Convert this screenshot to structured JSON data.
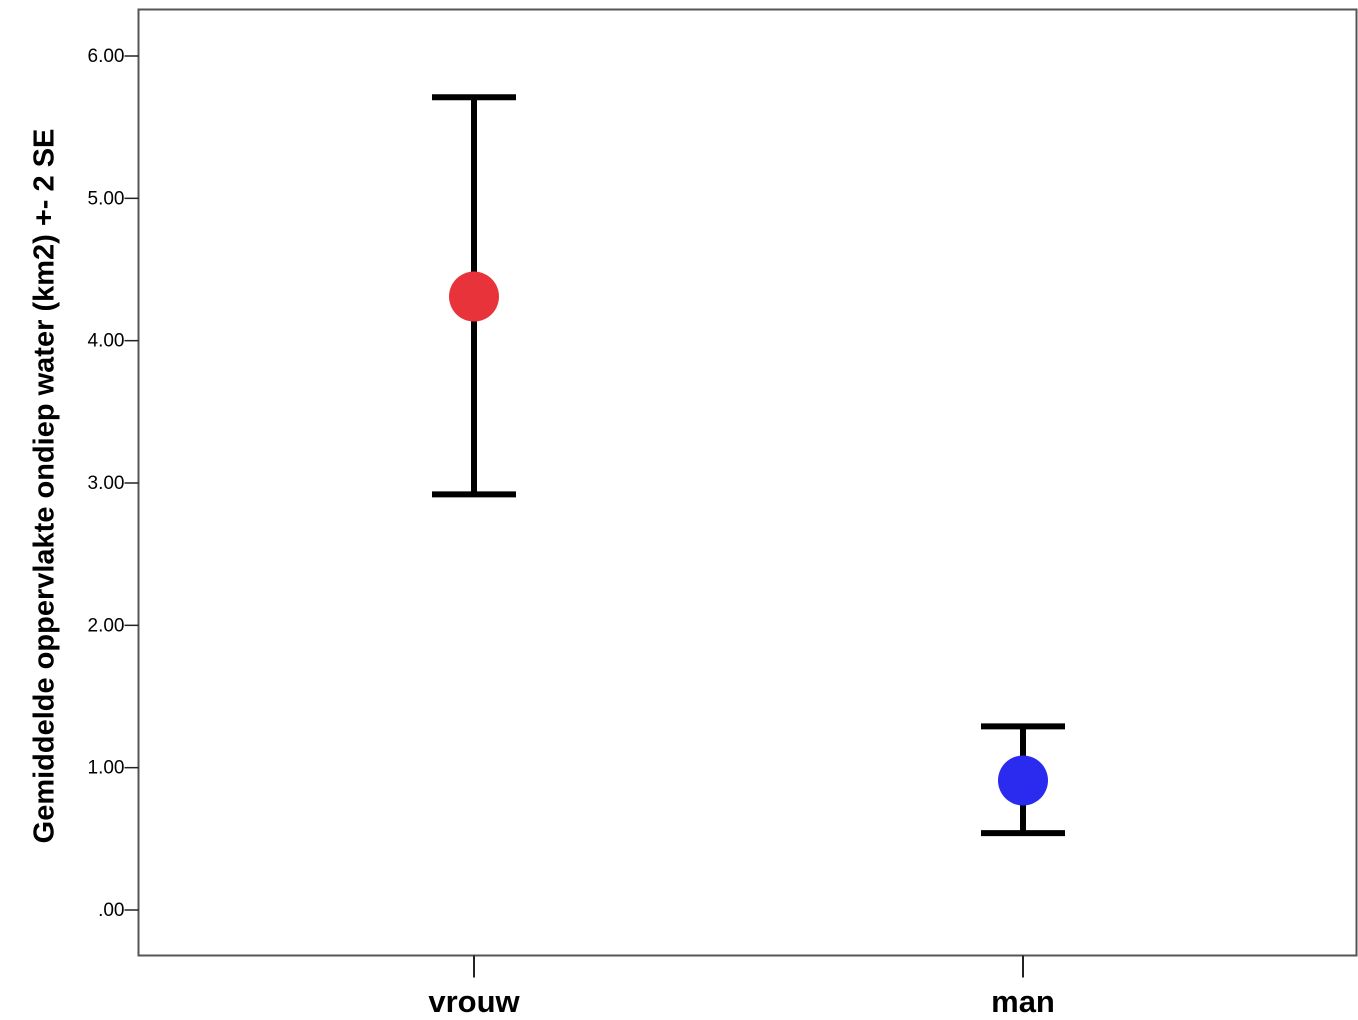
{
  "chart_data": {
    "type": "scatter",
    "title": "",
    "xlabel": "",
    "ylabel": "Gemiddelde oppervlakte ondiep water (km2) +- 2 SE",
    "ylim": [
      -0.3,
      6.3
    ],
    "yticks": [
      {
        "value": 0,
        "label": ".00"
      },
      {
        "value": 1,
        "label": "1.00"
      },
      {
        "value": 2,
        "label": "2.00"
      },
      {
        "value": 3,
        "label": "3.00"
      },
      {
        "value": 4,
        "label": "4.00"
      },
      {
        "value": 5,
        "label": "5.00"
      },
      {
        "value": 6,
        "label": "6.00"
      }
    ],
    "categories": [
      "vrouw",
      "man"
    ],
    "points": [
      {
        "category": "vrouw",
        "mean": 4.31,
        "lower": 2.92,
        "upper": 5.71,
        "color": "#e8333a"
      },
      {
        "category": "man",
        "mean": 0.91,
        "lower": 0.54,
        "upper": 1.29,
        "color": "#2b2bf0"
      }
    ],
    "grid": false,
    "legend": "none"
  }
}
